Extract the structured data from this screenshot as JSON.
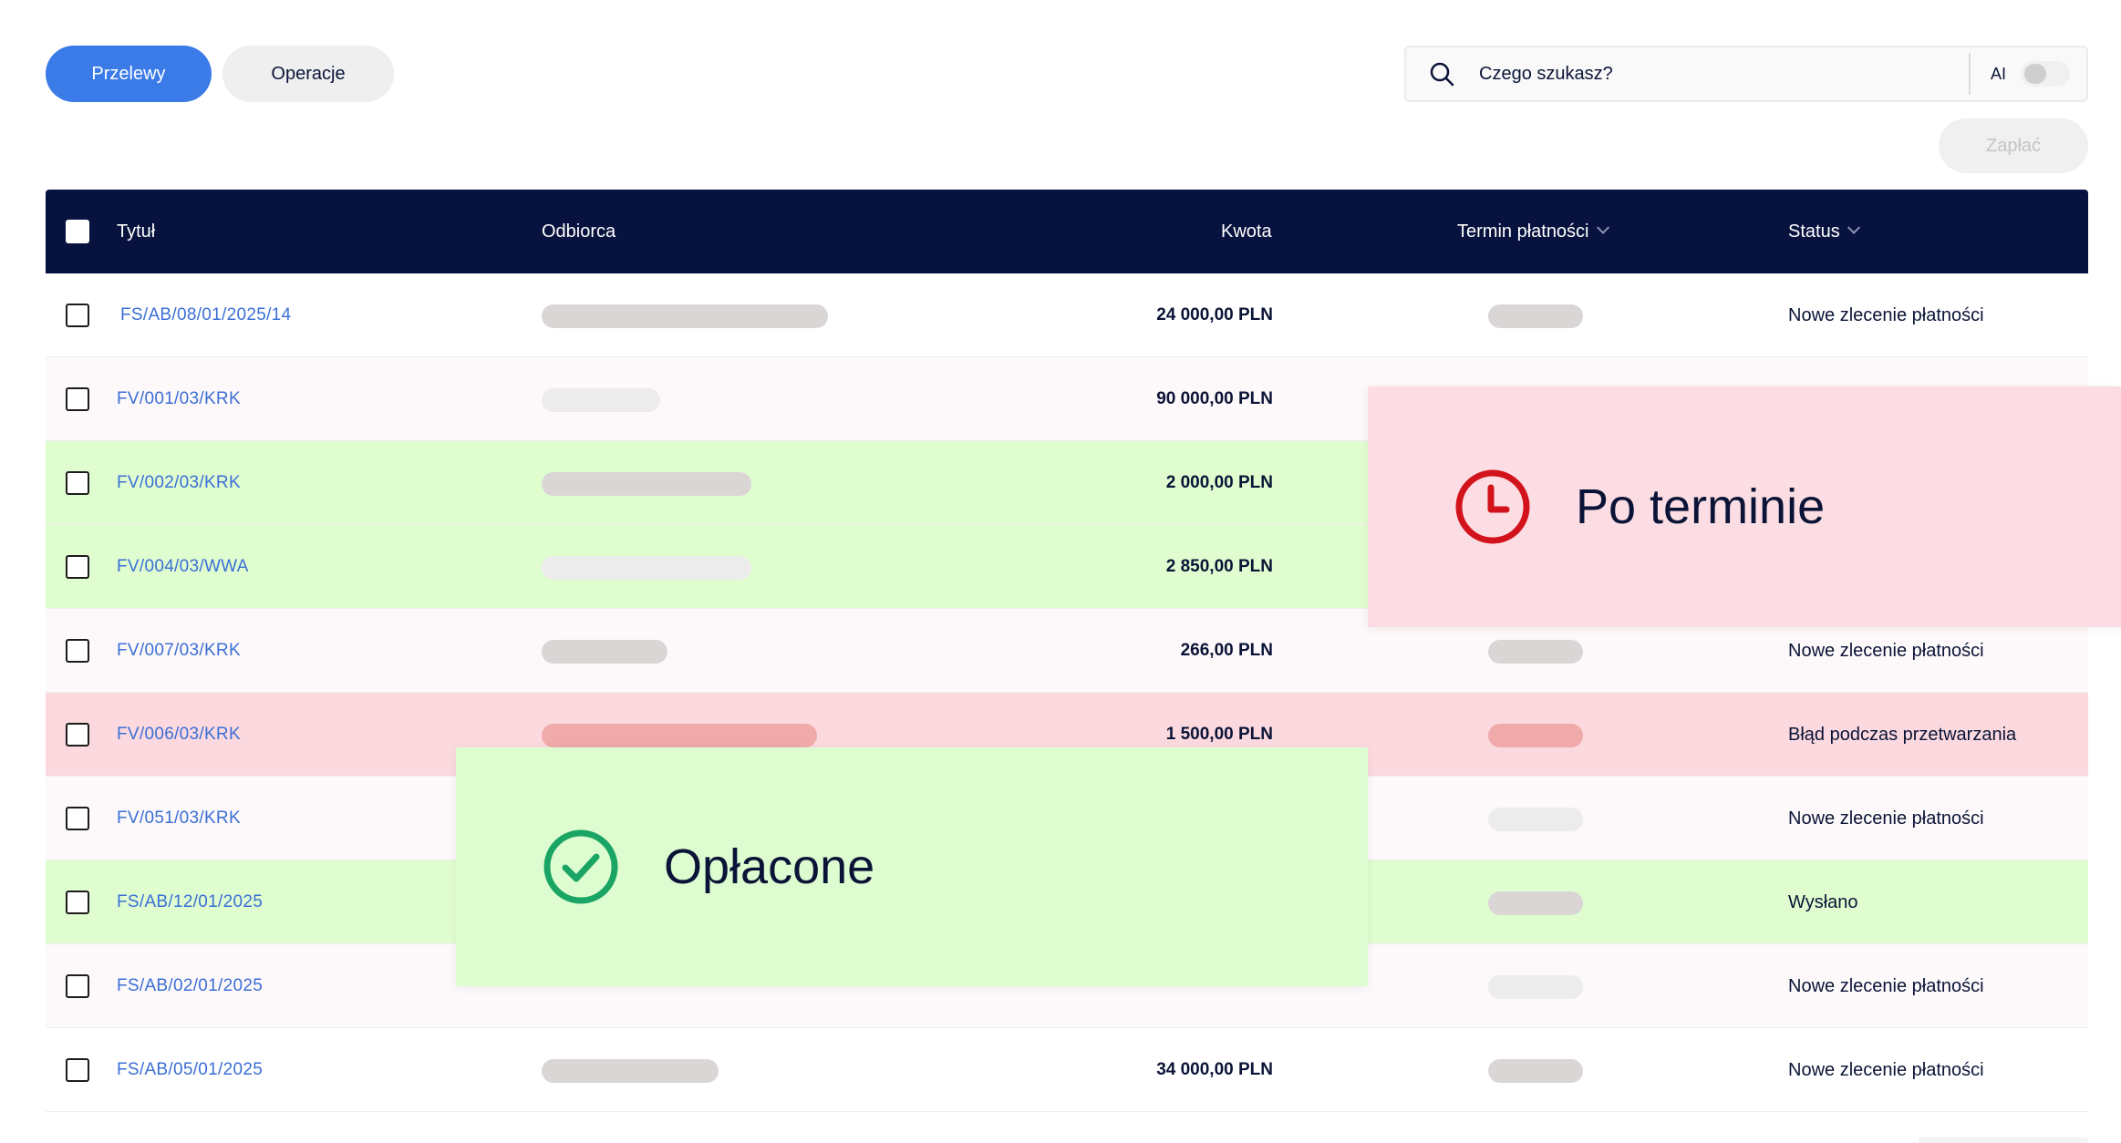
{
  "tabs": [
    {
      "label": "Przelewy",
      "active": true
    },
    {
      "label": "Operacje",
      "active": false
    }
  ],
  "search": {
    "placeholder": "Czego szukasz?",
    "ai_label": "AI",
    "ai_enabled": false
  },
  "pay_button": {
    "label": "Zapłać",
    "enabled": false
  },
  "table": {
    "headers": {
      "title": "Tytuł",
      "recipient": "Odbiorca",
      "amount": "Kwota",
      "due_date": "Termin płatności",
      "status": "Status"
    },
    "rows": [
      {
        "title": "FS/AB/08/01/2025/14",
        "amount": "24 000,00 PLN",
        "status": "Nowe zlecenie płatności",
        "state": "white"
      },
      {
        "title": "FV/001/03/KRK",
        "amount": "90 000,00 PLN",
        "status": "",
        "state": "pink-light"
      },
      {
        "title": "FV/002/03/KRK",
        "amount": "2 000,00 PLN",
        "status": "",
        "state": "green"
      },
      {
        "title": "FV/004/03/WWA",
        "amount": "2 850,00 PLN",
        "status": "",
        "state": "green"
      },
      {
        "title": "FV/007/03/KRK",
        "amount": "266,00 PLN",
        "status": "Nowe zlecenie płatności",
        "state": "pink-light"
      },
      {
        "title": "FV/006/03/KRK",
        "amount": "1 500,00 PLN",
        "status": "Błąd podczas przetwarzania",
        "state": "red"
      },
      {
        "title": "FV/051/03/KRK",
        "amount": "",
        "status": "Nowe zlecenie płatności",
        "state": "pink-light"
      },
      {
        "title": "FS/AB/12/01/2025",
        "amount": "",
        "status": "Wysłano",
        "state": "green"
      },
      {
        "title": "FS/AB/02/01/2025",
        "amount": "",
        "status": "Nowe zlecenie płatności",
        "state": "pink-light"
      },
      {
        "title": "FS/AB/05/01/2025",
        "amount": "34 000,00 PLN",
        "status": "Nowe zlecenie płatności",
        "state": "white"
      }
    ]
  },
  "overlays": {
    "overdue": {
      "label": "Po terminie",
      "icon": "clock-icon",
      "color": "#d3131b"
    },
    "paid": {
      "label": "Opłacone",
      "icon": "check-circle-icon",
      "color": "#1aa564"
    }
  },
  "colors": {
    "accent": "#3b7be8",
    "header_bg": "#07133e",
    "link": "#3b6fd6",
    "row_green": "#e0fdd0",
    "row_red": "#fbd9df",
    "row_pink": "#fdf8f9"
  }
}
